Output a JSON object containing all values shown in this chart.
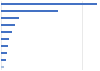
{
  "values": [
    5900,
    3500,
    1100,
    850,
    650,
    500,
    420,
    350,
    280,
    180
  ],
  "bar_color": "#4472c4",
  "last_bar_color": "#a8bfdf",
  "background_color": "#ffffff",
  "grid_color": "#d9d9d9",
  "figsize": [
    1.0,
    0.71
  ],
  "dpi": 100
}
